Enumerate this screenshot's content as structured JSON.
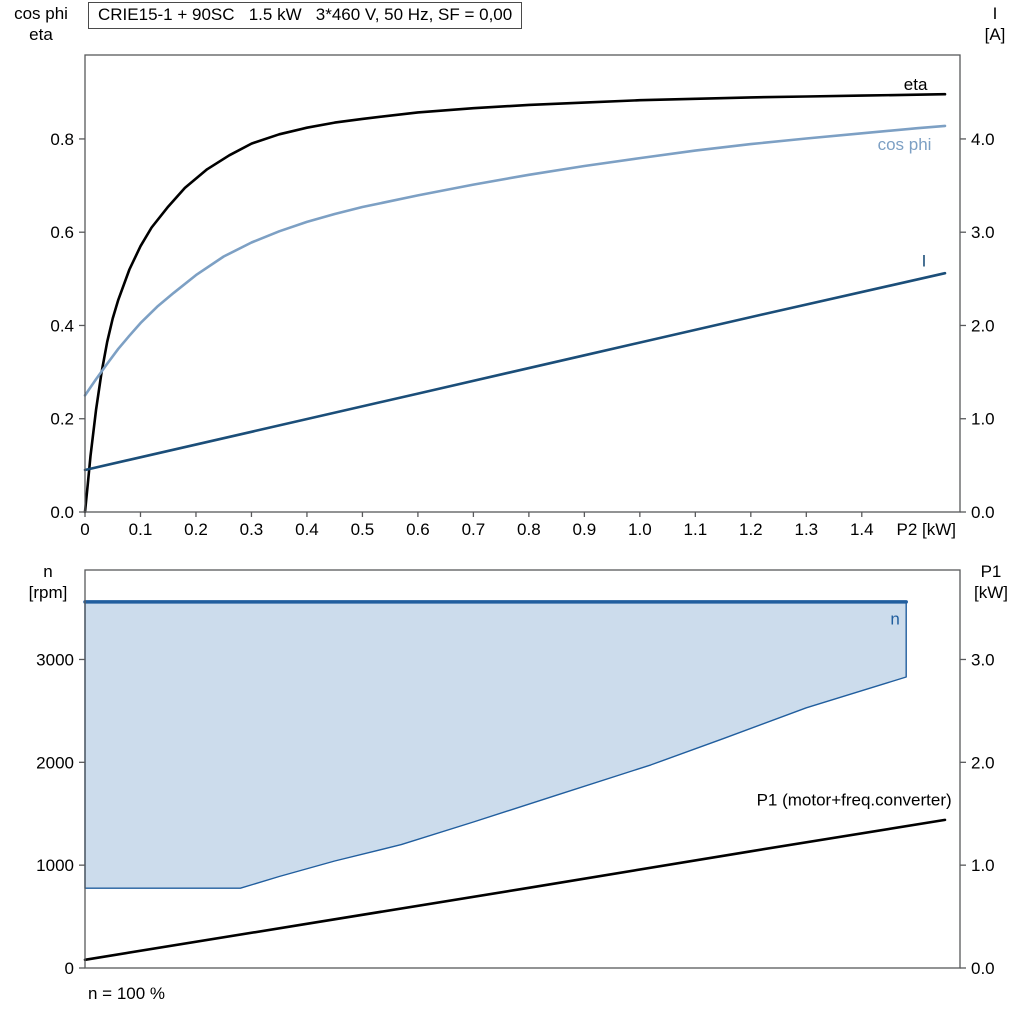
{
  "header": {
    "title": "CRIE15-1 + 90SC   1.5 kW   3*460 V, 50 Hz, SF = 0,00"
  },
  "axis_corner_labels": {
    "top_left": [
      "cos phi",
      "eta"
    ],
    "top_right": [
      "I",
      "[A]"
    ],
    "bottom_left": [
      "n",
      "[rpm]"
    ],
    "bottom_right": [
      "P1",
      "[kW]"
    ]
  },
  "footer": {
    "note": "n = 100 %"
  },
  "colors": {
    "eta": "#000000",
    "cos_phi": "#7da0c4",
    "current": "#1b4e79",
    "envelope_stroke": "#215e9e",
    "envelope_fill": "#ccdcec",
    "p1": "#000000",
    "frame": "#58595b"
  },
  "chart_data": [
    {
      "id": "motor-performance",
      "type": "line",
      "title": "CRIE15-1 + 90SC   1.5 kW   3*460 V, 50 Hz, SF = 0,00",
      "xlabel": "P2 [kW]",
      "xlim": [
        0,
        1.577
      ],
      "x_ticks": {
        "values": [
          0,
          0.1,
          0.2,
          0.3,
          0.4,
          0.5,
          0.6,
          0.7,
          0.8,
          0.9,
          1.0,
          1.1,
          1.2,
          1.3,
          1.4
        ],
        "labels": [
          "0",
          "0.1",
          "0.2",
          "0.3",
          "0.4",
          "0.5",
          "0.6",
          "0.7",
          "0.8",
          "0.9",
          "1.0",
          "1.1",
          "1.2",
          "1.3",
          "1.4"
        ]
      },
      "y_left": {
        "name": "cos phi / eta",
        "lim": [
          0,
          0.98
        ],
        "ticks": [
          0,
          0.2,
          0.4,
          0.6,
          0.8
        ],
        "labels": [
          "0.0",
          "0.2",
          "0.4",
          "0.6",
          "0.8"
        ]
      },
      "y_right": {
        "name": "I [A]",
        "lim": [
          0,
          4.9
        ],
        "ticks": [
          0,
          1,
          2,
          3,
          4
        ],
        "labels": [
          "0.0",
          "1.0",
          "2.0",
          "3.0",
          "4.0"
        ]
      },
      "series": [
        {
          "name": "eta",
          "axis": "left",
          "color": "#000000",
          "width": 2.6,
          "points": [
            [
              0,
              0
            ],
            [
              0.005,
              0.06
            ],
            [
              0.01,
              0.12
            ],
            [
              0.02,
              0.22
            ],
            [
              0.03,
              0.3
            ],
            [
              0.04,
              0.365
            ],
            [
              0.05,
              0.415
            ],
            [
              0.06,
              0.455
            ],
            [
              0.08,
              0.52
            ],
            [
              0.1,
              0.57
            ],
            [
              0.12,
              0.61
            ],
            [
              0.15,
              0.655
            ],
            [
              0.18,
              0.695
            ],
            [
              0.22,
              0.735
            ],
            [
              0.26,
              0.765
            ],
            [
              0.3,
              0.79
            ],
            [
              0.35,
              0.81
            ],
            [
              0.4,
              0.824
            ],
            [
              0.45,
              0.835
            ],
            [
              0.5,
              0.843
            ],
            [
              0.6,
              0.857
            ],
            [
              0.7,
              0.866
            ],
            [
              0.8,
              0.873
            ],
            [
              0.9,
              0.878
            ],
            [
              1.0,
              0.883
            ],
            [
              1.1,
              0.886
            ],
            [
              1.2,
              0.889
            ],
            [
              1.3,
              0.891
            ],
            [
              1.4,
              0.893
            ],
            [
              1.55,
              0.896
            ]
          ]
        },
        {
          "name": "cos phi",
          "axis": "left",
          "color": "#7da0c4",
          "width": 2.6,
          "points": [
            [
              0,
              0.25
            ],
            [
              0.02,
              0.285
            ],
            [
              0.04,
              0.318
            ],
            [
              0.06,
              0.35
            ],
            [
              0.08,
              0.378
            ],
            [
              0.1,
              0.405
            ],
            [
              0.13,
              0.44
            ],
            [
              0.16,
              0.47
            ],
            [
              0.2,
              0.508
            ],
            [
              0.25,
              0.548
            ],
            [
              0.3,
              0.578
            ],
            [
              0.35,
              0.602
            ],
            [
              0.4,
              0.622
            ],
            [
              0.45,
              0.639
            ],
            [
              0.5,
              0.654
            ],
            [
              0.6,
              0.679
            ],
            [
              0.7,
              0.702
            ],
            [
              0.8,
              0.723
            ],
            [
              0.9,
              0.742
            ],
            [
              1.0,
              0.759
            ],
            [
              1.1,
              0.775
            ],
            [
              1.2,
              0.789
            ],
            [
              1.3,
              0.801
            ],
            [
              1.4,
              0.812
            ],
            [
              1.5,
              0.823
            ],
            [
              1.55,
              0.828
            ]
          ]
        },
        {
          "name": "I",
          "axis": "right",
          "color": "#1b4e79",
          "width": 2.6,
          "points": [
            [
              0,
              0.45
            ],
            [
              0.3,
              0.86
            ],
            [
              0.6,
              1.27
            ],
            [
              0.9,
              1.68
            ],
            [
              1.2,
              2.09
            ],
            [
              1.55,
              2.56
            ]
          ]
        }
      ],
      "labels": [
        {
          "text": "eta",
          "x": 1.497,
          "y": 0.905,
          "axis": "left",
          "color": "#000000",
          "anchor": "middle"
        },
        {
          "text": "cos phi",
          "x": 1.477,
          "y": 0.776,
          "axis": "left",
          "color": "#7da0c4",
          "anchor": "middle"
        },
        {
          "text": "I",
          "x": 1.512,
          "y": 2.63,
          "axis": "right",
          "color": "#1b4e79",
          "anchor": "middle"
        }
      ]
    },
    {
      "id": "speed-and-power",
      "type": "area",
      "title": "",
      "xlabel": "",
      "xlim": [
        0,
        1.577
      ],
      "x_ticks": {
        "values": [],
        "labels": []
      },
      "y_left": {
        "name": "n [rpm]",
        "lim": [
          0,
          3870
        ],
        "ticks": [
          0,
          1000,
          2000,
          3000
        ],
        "labels": [
          "0",
          "1000",
          "2000",
          "3000"
        ]
      },
      "y_right": {
        "name": "P1 [kW]",
        "lim": [
          0,
          3.87
        ],
        "ticks": [
          0,
          1,
          2,
          3
        ],
        "labels": [
          "0.0",
          "1.0",
          "2.0",
          "3.0"
        ]
      },
      "series": [
        {
          "name": "n operating range",
          "axis": "left",
          "color": "#215e9e",
          "fill": "#ccdcec",
          "width": 1.4,
          "points": [
            [
              0,
              776
            ],
            [
              0.28,
              776
            ],
            [
              0.35,
              890
            ],
            [
              0.45,
              1040
            ],
            [
              0.57,
              1200
            ],
            [
              0.7,
              1420
            ],
            [
              0.85,
              1680
            ],
            [
              1.02,
              1975
            ],
            [
              1.15,
              2230
            ],
            [
              1.3,
              2530
            ],
            [
              1.48,
              2830
            ],
            [
              1.48,
              3560
            ],
            [
              0,
              3560
            ]
          ]
        },
        {
          "name": "n max",
          "axis": "left",
          "color": "#215e9e",
          "width": 3.5,
          "points": [
            [
              0,
              3560
            ],
            [
              1.48,
              3560
            ]
          ]
        },
        {
          "name": "P1 (motor+freq.converter)",
          "axis": "right",
          "color": "#000000",
          "width": 2.6,
          "points": [
            [
              0,
              0.08
            ],
            [
              0.4,
              0.43
            ],
            [
              0.8,
              0.78
            ],
            [
              1.2,
              1.135
            ],
            [
              1.55,
              1.44
            ]
          ]
        }
      ],
      "labels": [
        {
          "text": "n",
          "x": 1.46,
          "y": 3340,
          "axis": "left",
          "color": "#215e9e",
          "anchor": "middle"
        },
        {
          "text": "P1 (motor+freq.converter)",
          "x": 1.562,
          "y": 1.58,
          "axis": "right",
          "color": "#000000",
          "anchor": "end"
        }
      ]
    }
  ]
}
